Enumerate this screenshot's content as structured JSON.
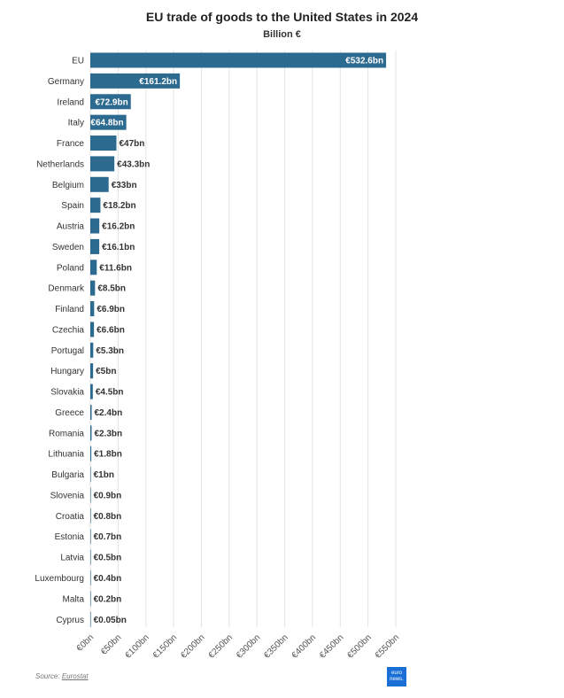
{
  "header": {
    "title": "EU trade of goods to the United States in 2024",
    "subtitle": "Billion €"
  },
  "footer": {
    "source_prefix": "Source:",
    "source_name": "Eurostat",
    "logo_text": "euro news."
  },
  "colors": {
    "bar": "#2d6a8f",
    "grid": "#e3e3e3",
    "label_inside": "#ffffff",
    "label_outside": "#333333"
  },
  "chart_data": {
    "type": "bar",
    "orientation": "horizontal",
    "title": "EU trade of goods to the United States in 2024",
    "subtitle": "Billion €",
    "categories": [
      "EU",
      "Germany",
      "Ireland",
      "Italy",
      "France",
      "Netherlands",
      "Belgium",
      "Spain",
      "Austria",
      "Sweden",
      "Poland",
      "Denmark",
      "Finland",
      "Czechia",
      "Portugal",
      "Hungary",
      "Slovakia",
      "Greece",
      "Romania",
      "Lithuania",
      "Bulgaria",
      "Slovenia",
      "Croatia",
      "Estonia",
      "Latvia",
      "Luxembourg",
      "Malta",
      "Cyprus"
    ],
    "values": [
      532.6,
      161.2,
      72.9,
      64.8,
      47,
      43.3,
      33,
      18.2,
      16.2,
      16.1,
      11.6,
      8.5,
      6.9,
      6.6,
      5.3,
      5,
      4.5,
      2.4,
      2.3,
      1.8,
      1,
      0.9,
      0.8,
      0.7,
      0.5,
      0.4,
      0.2,
      0.05
    ],
    "value_labels": [
      "€532.6bn",
      "€161.2bn",
      "€72.9bn",
      "€64.8bn",
      "€47bn",
      "€43.3bn",
      "€33bn",
      "€18.2bn",
      "€16.2bn",
      "€16.1bn",
      "€11.6bn",
      "€8.5bn",
      "€6.9bn",
      "€6.6bn",
      "€5.3bn",
      "€5bn",
      "€4.5bn",
      "€2.4bn",
      "€2.3bn",
      "€1.8bn",
      "€1bn",
      "€0.9bn",
      "€0.8bn",
      "€0.7bn",
      "€0.5bn",
      "€0.4bn",
      "€0.2bn",
      "€0.05bn"
    ],
    "inside_label_count": 4,
    "xlim": [
      0,
      550
    ],
    "xticks": [
      0,
      50,
      100,
      150,
      200,
      250,
      300,
      350,
      400,
      450,
      500,
      550
    ],
    "xtick_labels": [
      "€0bn",
      "€50bn",
      "€100bn",
      "€150bn",
      "€200bn",
      "€250bn",
      "€300bn",
      "€350bn",
      "€400bn",
      "€450bn",
      "€500bn",
      "€550bn"
    ],
    "grid": true
  }
}
